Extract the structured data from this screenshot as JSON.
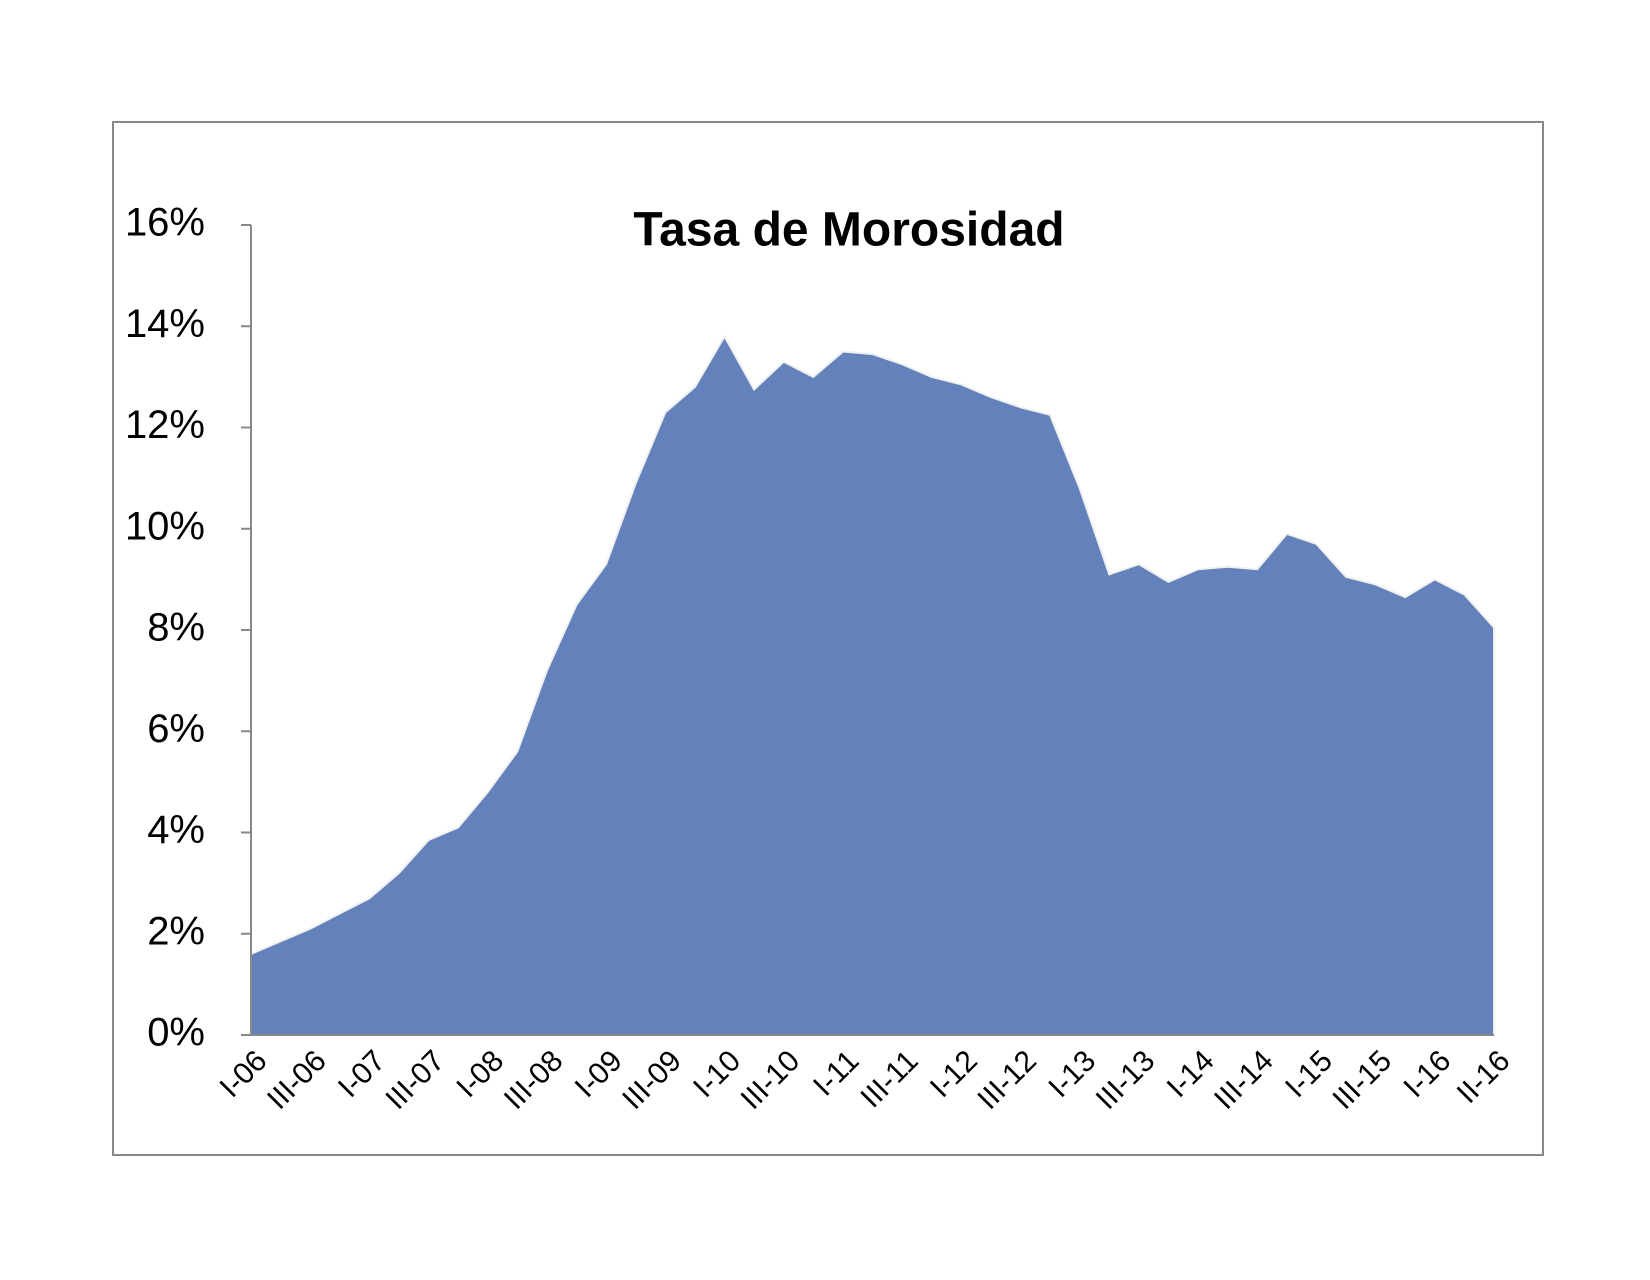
{
  "chart_data": {
    "type": "area",
    "title": "Tasa de Morosidad",
    "categories": [
      "I-06",
      null,
      "III-06",
      null,
      "I-07",
      null,
      "III-07",
      null,
      "I-08",
      null,
      "III-08",
      null,
      "I-09",
      null,
      "III-09",
      null,
      "I-10",
      null,
      "III-10",
      null,
      "I-11",
      null,
      "III-11",
      null,
      "I-12",
      null,
      "III-12",
      null,
      "I-13",
      null,
      "III-13",
      null,
      "I-14",
      null,
      "III-14",
      null,
      "I-15",
      null,
      "III-15",
      null,
      "I-16",
      null,
      "II-16"
    ],
    "values": [
      1.6,
      1.85,
      2.1,
      2.4,
      2.7,
      3.2,
      3.85,
      4.1,
      4.8,
      5.6,
      7.2,
      8.5,
      9.3,
      10.9,
      12.3,
      12.8,
      13.8,
      12.75,
      13.3,
      13.0,
      13.5,
      13.45,
      13.25,
      13.0,
      12.85,
      12.6,
      12.4,
      12.25,
      10.8,
      9.1,
      9.3,
      8.95,
      9.2,
      9.25,
      9.2,
      9.9,
      9.7,
      9.05,
      8.9,
      8.65,
      9.0,
      8.7,
      8.05
    ],
    "color": "#6381ba",
    "ylim": [
      0,
      16
    ],
    "yticks": [
      {
        "value": 0,
        "label": "0%"
      },
      {
        "value": 2,
        "label": "2%"
      },
      {
        "value": 4,
        "label": "4%"
      },
      {
        "value": 6,
        "label": "6%"
      },
      {
        "value": 8,
        "label": "8%"
      },
      {
        "value": 10,
        "label": "10%"
      },
      {
        "value": 12,
        "label": "12%"
      },
      {
        "value": 14,
        "label": "14%"
      },
      {
        "value": 16,
        "label": "16%"
      }
    ],
    "grid": false
  }
}
